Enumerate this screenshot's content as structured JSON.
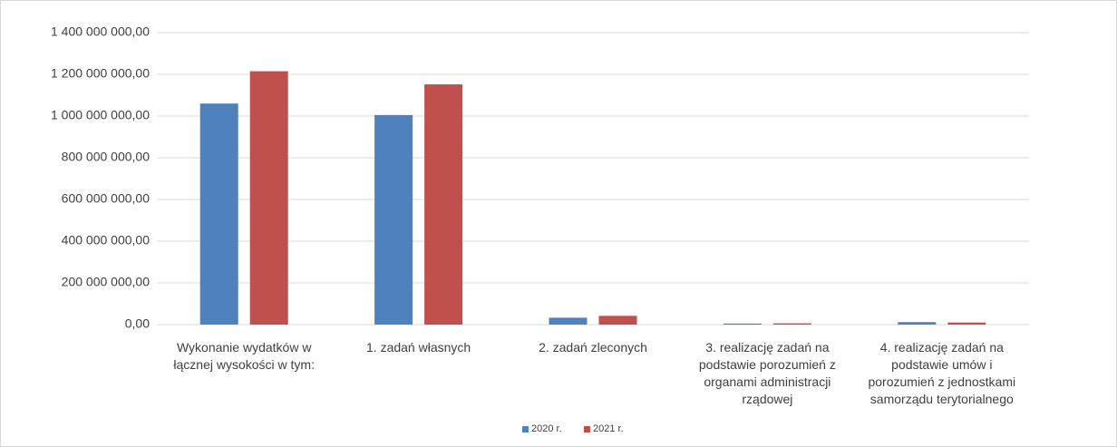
{
  "chart_data": {
    "type": "bar",
    "categories": [
      "Wykonanie wydatków w łącznej wysokości w tym:",
      "1. zadań własnych",
      "2. zadań zleconych",
      "3. realizację zadań na podstawie porozumień z organami administracji rządowej",
      "4. realizację zadań na podstawie umów i porozumień z jednostkami samorządu terytorialnego"
    ],
    "series": [
      {
        "name": "2020 r.",
        "color": "#4f81bd",
        "values": [
          1060000000,
          1005000000,
          33000000,
          5000000,
          12000000
        ]
      },
      {
        "name": "2021 r.",
        "color": "#c0504d",
        "values": [
          1215000000,
          1152000000,
          42000000,
          6000000,
          10000000
        ]
      }
    ],
    "ylim": [
      0,
      1400000000
    ],
    "yticks": [
      {
        "value": 0,
        "label": "0,00"
      },
      {
        "value": 200000000,
        "label": "200 000 000,00"
      },
      {
        "value": 400000000,
        "label": "400 000 000,00"
      },
      {
        "value": 600000000,
        "label": "600 000 000,00"
      },
      {
        "value": 800000000,
        "label": "800 000 000,00"
      },
      {
        "value": 1000000000,
        "label": "1 000 000 000,00"
      },
      {
        "value": 1200000000,
        "label": "1 200 000 000,00"
      },
      {
        "value": 1400000000,
        "label": "1 400 000 000,00"
      }
    ],
    "grid": true,
    "legend": "bottom"
  }
}
